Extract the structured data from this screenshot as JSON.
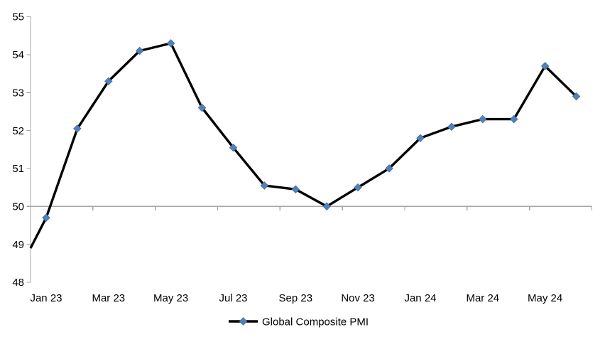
{
  "chart_data": {
    "type": "line",
    "title": "",
    "xlabel": "",
    "ylabel": "",
    "categories": [
      "Jan 23",
      "Feb 23",
      "Mar 23",
      "Apr 23",
      "May 23",
      "Jun 23",
      "Jul 23",
      "Aug 23",
      "Sep 23",
      "Oct 23",
      "Nov 23",
      "Dec 23",
      "Jan 24",
      "Feb 24",
      "Mar 24",
      "Apr 24",
      "May 24",
      "Jun 24"
    ],
    "series": [
      {
        "name": "Global Composite PMI",
        "values": [
          49.7,
          52.05,
          53.3,
          54.1,
          54.3,
          52.6,
          51.55,
          50.55,
          50.45,
          50.0,
          50.5,
          51.0,
          51.8,
          52.1,
          52.3,
          52.3,
          53.7,
          52.9
        ],
        "edge_start_value": 48.9,
        "line_color": "#000000",
        "marker": "diamond",
        "marker_color": "#4F81BD",
        "marker_edge_color": "#44719F"
      }
    ],
    "x_tick_labels": [
      "Jan 23",
      "Mar 23",
      "May 23",
      "Jul 23",
      "Sep 23",
      "Nov 23",
      "Jan 24",
      "Mar 24",
      "May 24"
    ],
    "x_label_every": 2,
    "y_ticks": [
      48,
      49,
      50,
      51,
      52,
      53,
      54,
      55
    ],
    "ylim": [
      48,
      55
    ],
    "grid": "off",
    "axis_color": "#A6A6A6",
    "x_axis_crosses_at": 50,
    "legend": {
      "label": "Global Composite PMI",
      "position": "bottom-center"
    }
  }
}
